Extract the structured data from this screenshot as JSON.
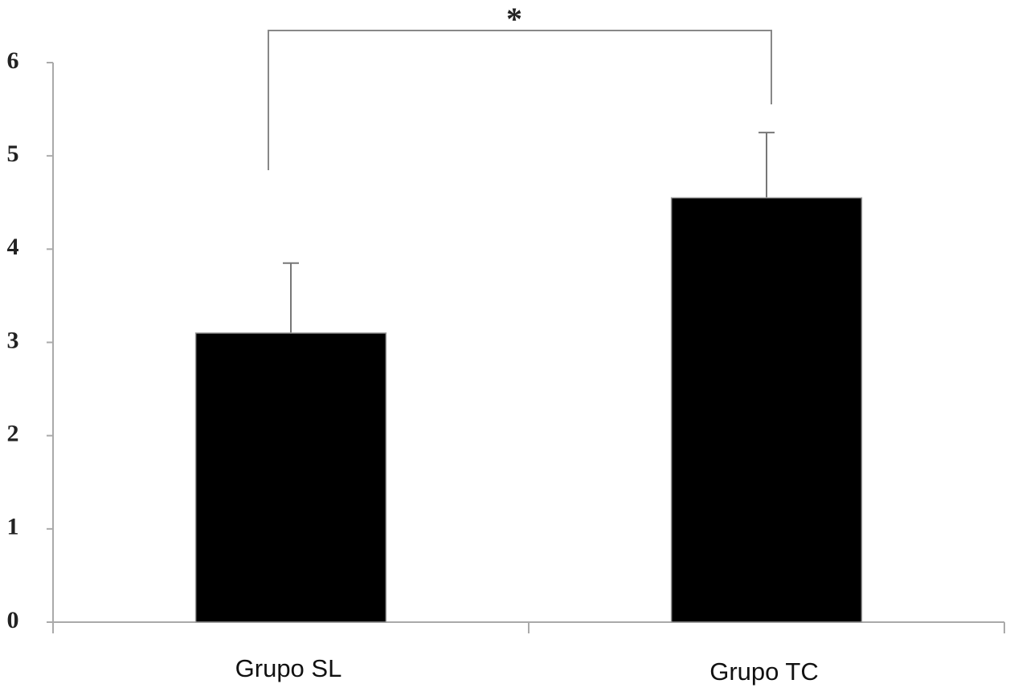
{
  "chart_data": {
    "type": "bar",
    "annotation": "*",
    "categories": [
      "Grupo SL",
      "Grupo TC"
    ],
    "values": [
      3.1,
      4.55
    ],
    "errors": [
      0.75,
      0.7
    ],
    "color": "#000000",
    "ylim": [
      0,
      6
    ],
    "yticks": [
      0,
      1,
      2,
      3,
      4,
      5,
      6
    ],
    "grid": false
  }
}
